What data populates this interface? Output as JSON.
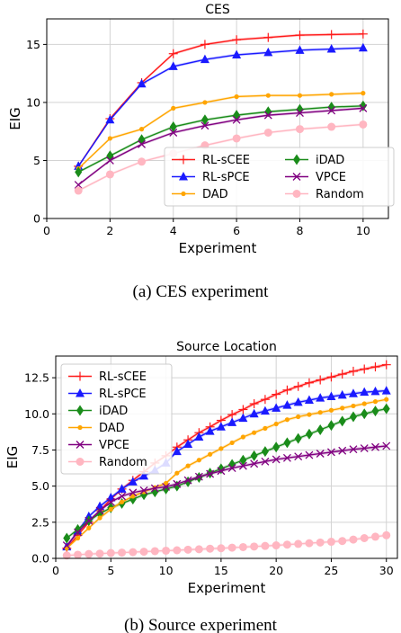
{
  "chart_data": [
    {
      "type": "line",
      "title": "CES",
      "xlabel": "Experiment",
      "ylabel": "EIG",
      "xlim": [
        0,
        10.8
      ],
      "ylim": [
        0,
        17.2
      ],
      "xticks": [
        0,
        2,
        4,
        6,
        8,
        10
      ],
      "yticks": [
        0,
        5,
        10,
        15
      ],
      "grid": true,
      "legend_position": "lower-right",
      "legend_columns": 2,
      "x": [
        1,
        2,
        3,
        4,
        5,
        6,
        7,
        8,
        9,
        10
      ],
      "series": [
        {
          "name": "RL-sCEE",
          "color": "#ff1a1a",
          "marker": "plus",
          "markers_every": 1,
          "values": [
            4.5,
            8.6,
            11.7,
            14.2,
            15.0,
            15.4,
            15.6,
            15.8,
            15.85,
            15.9
          ]
        },
        {
          "name": "RL-sPCE",
          "color": "#1a1aff",
          "marker": "triangle",
          "markers_every": 1,
          "values": [
            4.5,
            8.5,
            11.6,
            13.1,
            13.7,
            14.1,
            14.3,
            14.5,
            14.6,
            14.7
          ]
        },
        {
          "name": "DAD",
          "color": "#ffa500",
          "marker": "dot",
          "markers_every": 1,
          "values": [
            4.3,
            6.9,
            7.7,
            9.5,
            10.0,
            10.5,
            10.6,
            10.6,
            10.7,
            10.8
          ]
        },
        {
          "name": "iDAD",
          "color": "#1a8c1a",
          "marker": "diamond",
          "markers_every": 1,
          "values": [
            4.0,
            5.4,
            6.8,
            7.9,
            8.5,
            8.9,
            9.2,
            9.4,
            9.6,
            9.7
          ]
        },
        {
          "name": "VPCE",
          "color": "#800080",
          "marker": "x",
          "markers_every": 1,
          "values": [
            2.9,
            5.0,
            6.4,
            7.4,
            8.0,
            8.5,
            8.9,
            9.1,
            9.3,
            9.5
          ]
        },
        {
          "name": "Random",
          "color": "#ffb6c1",
          "marker": "bigdot",
          "markers_every": 1,
          "values": [
            2.4,
            3.8,
            4.9,
            5.6,
            6.3,
            6.9,
            7.4,
            7.7,
            7.9,
            8.1
          ]
        }
      ]
    },
    {
      "type": "line",
      "title": "Source Location",
      "xlabel": "Experiment",
      "ylabel": "EIG",
      "xlim": [
        0,
        31
      ],
      "ylim": [
        0,
        14
      ],
      "xticks": [
        0,
        5,
        10,
        15,
        20,
        25,
        30
      ],
      "yticks": [
        0.0,
        2.5,
        5.0,
        7.5,
        10.0,
        12.5
      ],
      "grid": true,
      "legend_position": "upper-left",
      "legend_columns": 1,
      "x": [
        1,
        2,
        3,
        4,
        5,
        6,
        7,
        8,
        9,
        10,
        11,
        12,
        13,
        14,
        15,
        16,
        17,
        18,
        19,
        20,
        21,
        22,
        23,
        24,
        25,
        26,
        27,
        28,
        29,
        30
      ],
      "series": [
        {
          "name": "RL-sCEE",
          "color": "#ff1a1a",
          "marker": "plus",
          "markers_every": 1,
          "values": [
            0.7,
            1.6,
            2.5,
            3.3,
            4.1,
            4.8,
            5.4,
            6.0,
            6.6,
            7.1,
            7.7,
            8.2,
            8.7,
            9.1,
            9.55,
            9.95,
            10.3,
            10.7,
            11.0,
            11.35,
            11.65,
            11.9,
            12.15,
            12.35,
            12.55,
            12.75,
            12.95,
            13.1,
            13.25,
            13.4
          ]
        },
        {
          "name": "RL-sPCE",
          "color": "#1a1aff",
          "marker": "triangle",
          "markers_every": 1,
          "values": [
            0.8,
            1.9,
            2.9,
            3.6,
            4.2,
            4.8,
            5.3,
            5.7,
            6.1,
            6.6,
            7.4,
            7.9,
            8.4,
            8.8,
            9.1,
            9.4,
            9.7,
            10.0,
            10.2,
            10.4,
            10.6,
            10.8,
            10.95,
            11.1,
            11.2,
            11.3,
            11.4,
            11.5,
            11.55,
            11.6
          ]
        },
        {
          "name": "iDAD",
          "color": "#1a8c1a",
          "marker": "diamond",
          "markers_every": 1,
          "values": [
            1.4,
            2.0,
            2.6,
            3.1,
            3.5,
            3.8,
            4.1,
            4.4,
            4.6,
            4.8,
            5.0,
            5.3,
            5.6,
            5.9,
            6.2,
            6.5,
            6.8,
            7.1,
            7.4,
            7.7,
            8.0,
            8.3,
            8.6,
            8.9,
            9.2,
            9.5,
            9.8,
            10.0,
            10.2,
            10.35
          ]
        },
        {
          "name": "DAD",
          "color": "#ffa500",
          "marker": "dot",
          "markers_every": 1,
          "values": [
            0.7,
            1.4,
            2.1,
            2.8,
            3.4,
            3.9,
            4.3,
            4.6,
            4.9,
            5.2,
            5.9,
            6.4,
            6.8,
            7.2,
            7.6,
            8.0,
            8.4,
            8.7,
            9.0,
            9.3,
            9.6,
            9.8,
            9.95,
            10.1,
            10.25,
            10.4,
            10.55,
            10.7,
            10.85,
            11.0
          ]
        },
        {
          "name": "VPCE",
          "color": "#800080",
          "marker": "x",
          "markers_every": 1,
          "values": [
            0.9,
            1.8,
            2.6,
            3.3,
            3.9,
            4.3,
            4.55,
            4.7,
            4.85,
            4.95,
            5.15,
            5.4,
            5.65,
            5.85,
            6.05,
            6.25,
            6.4,
            6.55,
            6.7,
            6.85,
            6.95,
            7.05,
            7.15,
            7.25,
            7.35,
            7.45,
            7.55,
            7.62,
            7.7,
            7.78
          ]
        },
        {
          "name": "Random",
          "color": "#ffb6c1",
          "marker": "bigdot",
          "markers_every": 1,
          "values": [
            0.2,
            0.25,
            0.3,
            0.33,
            0.37,
            0.4,
            0.43,
            0.46,
            0.5,
            0.53,
            0.56,
            0.6,
            0.63,
            0.67,
            0.7,
            0.74,
            0.78,
            0.82,
            0.86,
            0.9,
            0.95,
            1.0,
            1.05,
            1.1,
            1.15,
            1.2,
            1.3,
            1.4,
            1.5,
            1.6
          ]
        }
      ]
    }
  ],
  "captions": {
    "a": "(a) CES experiment",
    "b": "(b) Source experiment"
  }
}
